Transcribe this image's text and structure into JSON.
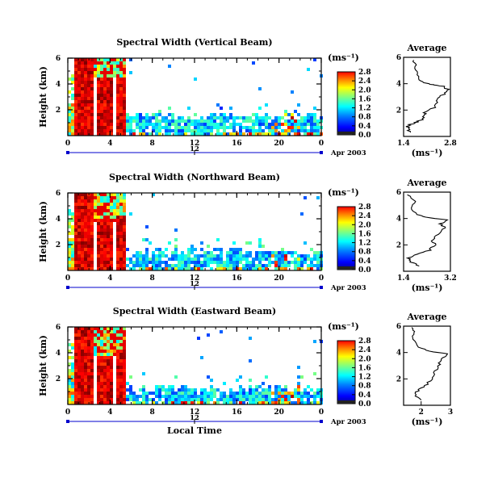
{
  "chart_data": [
    {
      "type": "heatmap",
      "title": "Spectral Width (Vertical Beam)",
      "ylabel": "Height (km)",
      "xticks": [
        "0",
        "4",
        "8",
        "12",
        "16",
        "20",
        "0"
      ],
      "yticks": [
        "2",
        "4",
        "6"
      ],
      "ylim": [
        0,
        6
      ],
      "xlim": [
        0,
        24
      ],
      "date_tick": "12",
      "date_label": "Apr 2003",
      "colorbar": {
        "unit": "(ms⁻¹)",
        "ticks": [
          "0.0",
          "0.4",
          "0.8",
          "1.2",
          "1.6",
          "2.0",
          "2.4",
          "2.8"
        ]
      },
      "profile": {
        "title": "Average",
        "xlabel": "(ms⁻¹)",
        "xticks": [
          "1.4",
          "2.8"
        ],
        "yticks": [
          "2",
          "4",
          "6"
        ],
        "xlim": [
          1.4,
          2.8
        ],
        "points": [
          [
            1.6,
            0.3
          ],
          [
            1.55,
            0.6
          ],
          [
            1.5,
            0.8
          ],
          [
            1.7,
            1.0
          ],
          [
            1.9,
            1.2
          ],
          [
            2.0,
            1.5
          ],
          [
            2.05,
            1.8
          ],
          [
            2.3,
            2.2
          ],
          [
            2.4,
            2.7
          ],
          [
            2.55,
            3.1
          ],
          [
            2.75,
            3.5
          ],
          [
            2.6,
            3.8
          ],
          [
            2.3,
            3.9
          ],
          [
            2.1,
            4.0
          ],
          [
            1.9,
            4.3
          ],
          [
            1.8,
            4.8
          ],
          [
            1.75,
            5.3
          ],
          [
            1.7,
            5.8
          ]
        ]
      }
    },
    {
      "type": "heatmap",
      "title": "Spectral Width (Northward Beam)",
      "ylabel": "Height (km)",
      "xticks": [
        "0",
        "4",
        "8",
        "12",
        "16",
        "20",
        "0"
      ],
      "yticks": [
        "2",
        "4",
        "6"
      ],
      "ylim": [
        0,
        6
      ],
      "xlim": [
        0,
        24
      ],
      "date_tick": "12",
      "date_label": "Apr 2003",
      "colorbar": {
        "unit": "(ms⁻¹)",
        "ticks": [
          "0.0",
          "0.4",
          "0.8",
          "1.2",
          "1.6",
          "2.0",
          "2.4",
          "2.8"
        ]
      },
      "profile": {
        "title": "Average",
        "xlabel": "(ms⁻¹)",
        "xticks": [
          "1.4",
          "3.2"
        ],
        "yticks": [
          "2",
          "4",
          "6"
        ],
        "xlim": [
          1.4,
          3.2
        ],
        "points": [
          [
            2.0,
            0.4
          ],
          [
            1.7,
            0.7
          ],
          [
            1.6,
            1.0
          ],
          [
            1.9,
            1.3
          ],
          [
            2.4,
            1.6
          ],
          [
            2.6,
            2.0
          ],
          [
            2.5,
            2.4
          ],
          [
            2.7,
            2.8
          ],
          [
            3.0,
            3.3
          ],
          [
            2.8,
            3.6
          ],
          [
            3.1,
            3.9
          ],
          [
            2.2,
            4.1
          ],
          [
            1.9,
            4.3
          ],
          [
            1.7,
            4.8
          ],
          [
            1.8,
            5.3
          ],
          [
            1.6,
            5.8
          ]
        ]
      }
    },
    {
      "type": "heatmap",
      "title": "Spectral Width (Eastward Beam)",
      "ylabel": "Height (km)",
      "xticks": [
        "0",
        "4",
        "8",
        "12",
        "16",
        "20",
        "0"
      ],
      "yticks": [
        "2",
        "4",
        "6"
      ],
      "ylim": [
        0,
        6
      ],
      "xlim": [
        0,
        24
      ],
      "date_tick": "12",
      "date_label": "Apr 2003",
      "xlabel": "Local Time",
      "colorbar": {
        "unit": "(ms⁻¹)",
        "ticks": [
          "0.0",
          "0.4",
          "0.8",
          "1.2",
          "1.6",
          "2.0",
          "2.4",
          "2.8"
        ]
      },
      "profile": {
        "title": "Average",
        "xlabel": "(ms⁻¹)",
        "xticks": [
          "2",
          "3"
        ],
        "yticks": [
          "2",
          "4",
          "6"
        ],
        "xlim": [
          1.4,
          3.0
        ],
        "points": [
          [
            2.0,
            0.4
          ],
          [
            1.8,
            0.8
          ],
          [
            1.9,
            1.2
          ],
          [
            2.2,
            1.6
          ],
          [
            2.4,
            2.1
          ],
          [
            2.5,
            2.6
          ],
          [
            2.6,
            3.1
          ],
          [
            2.7,
            3.5
          ],
          [
            2.9,
            3.9
          ],
          [
            2.3,
            4.1
          ],
          [
            1.9,
            4.4
          ],
          [
            1.7,
            5.0
          ],
          [
            1.8,
            5.5
          ],
          [
            1.7,
            5.9
          ]
        ]
      }
    }
  ]
}
